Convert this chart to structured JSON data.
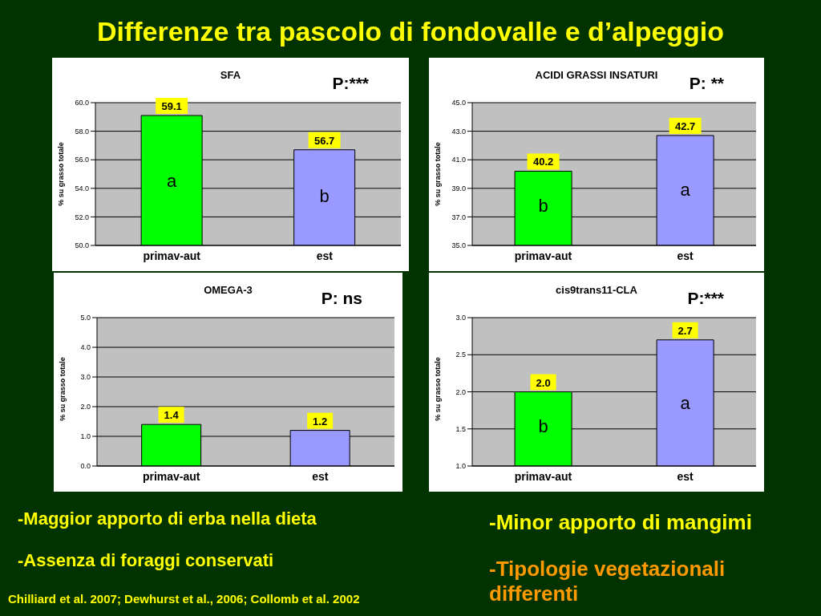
{
  "chart_data": [
    {
      "type": "bar",
      "title": "SFA",
      "ylabel": "% su grasso totale",
      "categories": [
        "primav-aut",
        "est"
      ],
      "values": [
        59.1,
        56.7
      ],
      "colors": [
        "#00ff00",
        "#9999ff"
      ],
      "ylim": [
        50,
        60
      ],
      "yticks": [
        {
          "value": 50,
          "label": "50.0"
        },
        {
          "value": 52,
          "label": "52.0"
        },
        {
          "value": 54,
          "label": "54.0"
        },
        {
          "value": 56,
          "label": "56.0"
        },
        {
          "value": 58,
          "label": "58.0"
        },
        {
          "value": 60,
          "label": "60.0"
        }
      ],
      "grid": "y",
      "data_labels": true,
      "annotations": [
        "P:***",
        "a",
        "b"
      ]
    },
    {
      "type": "bar",
      "title": "ACIDI GRASSI INSATURI",
      "ylabel": "% su grasso totale",
      "categories": [
        "primav-aut",
        "est"
      ],
      "values": [
        40.2,
        42.7
      ],
      "colors": [
        "#00ff00",
        "#9999ff"
      ],
      "ylim": [
        35,
        45
      ],
      "yticks": [
        {
          "value": 35,
          "label": "35.0"
        },
        {
          "value": 37,
          "label": "37.0"
        },
        {
          "value": 39,
          "label": "39.0"
        },
        {
          "value": 41,
          "label": "41.0"
        },
        {
          "value": 43,
          "label": "43.0"
        },
        {
          "value": 45,
          "label": "45.0"
        }
      ],
      "grid": "y",
      "data_labels": true,
      "annotations": [
        "P: **",
        "b",
        "a"
      ]
    },
    {
      "type": "bar",
      "title": "OMEGA-3",
      "ylabel": "% su grasso totale",
      "categories": [
        "primav-aut",
        "est"
      ],
      "values": [
        1.4,
        1.2
      ],
      "colors": [
        "#00ff00",
        "#9999ff"
      ],
      "ylim": [
        0,
        5
      ],
      "yticks": [
        {
          "value": 0,
          "label": "0.0"
        },
        {
          "value": 1,
          "label": "1.0"
        },
        {
          "value": 2,
          "label": "2.0"
        },
        {
          "value": 3,
          "label": "3.0"
        },
        {
          "value": 4,
          "label": "4.0"
        },
        {
          "value": 5,
          "label": "5.0"
        }
      ],
      "grid": "y",
      "data_labels": true,
      "annotations": [
        "P: ns"
      ]
    },
    {
      "type": "bar",
      "title": "cis9trans11-CLA",
      "ylabel": "% su grasso totale",
      "categories": [
        "primav-aut",
        "est"
      ],
      "values": [
        2.0,
        2.7
      ],
      "colors": [
        "#00ff00",
        "#9999ff"
      ],
      "ylim": [
        1,
        3
      ],
      "yticks": [
        {
          "value": 1,
          "label": "1.0"
        },
        {
          "value": 1.5,
          "label": "1.5"
        },
        {
          "value": 2,
          "label": "2.0"
        },
        {
          "value": 2.5,
          "label": "2.5"
        },
        {
          "value": 3,
          "label": "3.0"
        }
      ],
      "grid": "y",
      "value_labels": [
        "2.0",
        "2.7"
      ],
      "annotations": [
        "P:***",
        "b",
        "a"
      ]
    },
    {
      "type": "other",
      "title": "Differenze tra pascolo di fondovalle e d’alpeggio",
      "annotations": [
        "-Maggior apporto di erba nella dieta",
        "-Assenza di foraggi conservati",
        "-Minor apporto di mangimi",
        "-Tipologie vegetazionali differenti",
        "Chilliard et al. 2007; Dewhurst et al., 2006; Collomb et al. 2002"
      ]
    }
  ]
}
